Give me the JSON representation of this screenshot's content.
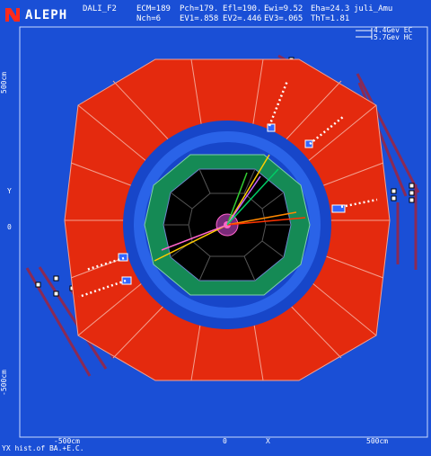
{
  "header": {
    "experiment": "ALEPH",
    "program": "DALI_F2",
    "ecm": "ECM=189",
    "pch": "Pch=179.",
    "efl": "Efl=190.",
    "ewi": "Ewi=9.52",
    "eha": "Eha=24.3",
    "user": "juli_Amu",
    "nch": "Nch=6",
    "ev1": "EV1=.858",
    "ev2": "EV2=.446",
    "ev3": "EV3=.065",
    "tht": "ThT=1.81"
  },
  "legend": {
    "ec": "4.4Gev EC",
    "hc": "5.7Gev HC"
  },
  "axes": {
    "y_top": "500cm",
    "y_name": "Y",
    "y_zero": "0",
    "y_bottom": "-500cm",
    "x_left": "-500cm",
    "x_zero": "0",
    "x_name": "X",
    "x_right": "500cm"
  },
  "footer": "YX hist.of BA.+E.C.",
  "colors": {
    "background": "#1a4fd6",
    "hcal": "#e42a0e",
    "ecal": "#1746c9",
    "tpc": "#158a55",
    "vdet": "#000000",
    "muon": "#8a2a55",
    "accent": "#ff0000"
  }
}
